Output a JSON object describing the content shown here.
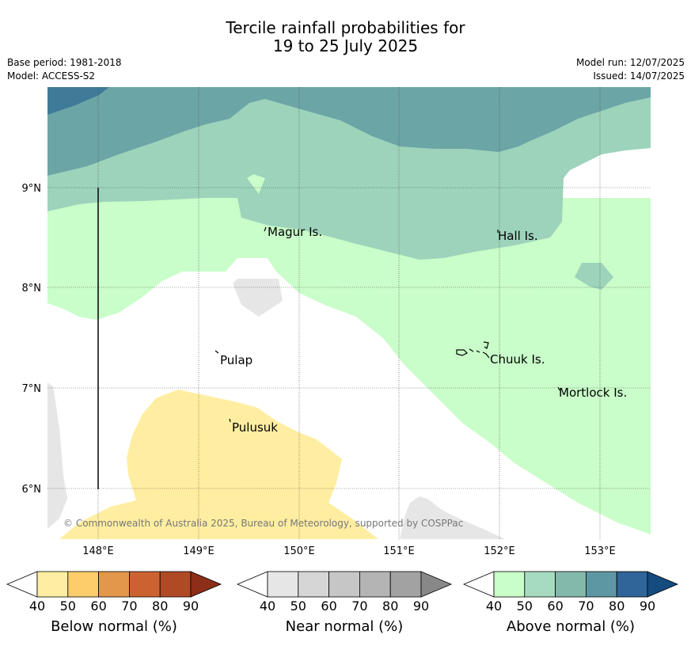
{
  "title": {
    "line1": "Tercile rainfall probabilities for",
    "line2": "19 to 25 July 2025"
  },
  "meta": {
    "base_period": "Base period: 1981-2018",
    "model": "Model: ACCESS-S2",
    "model_run": "Model run: 12/07/2025",
    "issued": "Issued: 14/07/2025"
  },
  "map": {
    "lat_labels": [
      "9°N",
      "8°N",
      "7°N",
      "6°N"
    ],
    "lon_labels": [
      "148°E",
      "149°E",
      "150°E",
      "151°E",
      "152°E",
      "153°E"
    ],
    "places": [
      "Magur Is.",
      "Hall Is.",
      "Pulap",
      "Chuuk Is.",
      "Mortlock Is.",
      "Pulusuk"
    ],
    "copyright": "© Commonwealth of Australia 2025, Bureau of Meteorology, supported by COSPPac",
    "colors": {
      "above_40": "#c9fdc9",
      "above_50": "#9dd3bb",
      "above_60": "#6ca5a6",
      "above_70": "#3f7a98",
      "near_40": "#e6e6e6",
      "below_40": "#ffeea1"
    }
  },
  "colorbars": {
    "below": {
      "label": "Below normal (%)",
      "ticks": [
        "40",
        "50",
        "60",
        "70",
        "80",
        "90"
      ],
      "colors": [
        "#ffeea1",
        "#fecd6b",
        "#e3974a",
        "#cd6231",
        "#b04a24",
        "#8c2e18"
      ]
    },
    "near": {
      "label": "Near normal (%)",
      "ticks": [
        "40",
        "50",
        "60",
        "70",
        "80",
        "90"
      ],
      "colors": [
        "#e6e6e6",
        "#d6d6d6",
        "#c6c6c6",
        "#b4b4b4",
        "#a2a2a2",
        "#888888"
      ]
    },
    "above": {
      "label": "Above normal (%)",
      "ticks": [
        "40",
        "50",
        "60",
        "70",
        "80",
        "90"
      ],
      "colors": [
        "#c9fdc9",
        "#a6dbbf",
        "#83b9ab",
        "#5d97a3",
        "#2f6598",
        "#144c7f"
      ]
    }
  }
}
